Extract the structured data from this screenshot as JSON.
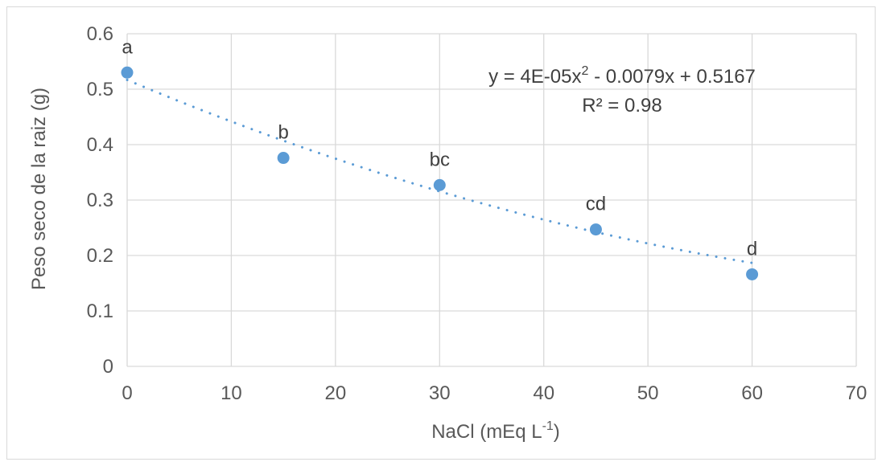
{
  "chart_data": {
    "type": "scatter",
    "x": [
      0,
      15,
      30,
      45,
      60
    ],
    "y": [
      0.53,
      0.376,
      0.327,
      0.247,
      0.166
    ],
    "point_labels": [
      "a",
      "b",
      "bc",
      "cd",
      "d"
    ],
    "xlabel_main": "NaCl (mEq L",
    "xlabel_sup": "-1",
    "xlabel_end": ")",
    "ylabel": "Peso seco de la raiz (g)",
    "xlim": [
      0,
      70
    ],
    "ylim": [
      0,
      0.6
    ],
    "xticks": [
      0,
      10,
      20,
      30,
      40,
      50,
      60,
      70
    ],
    "yticks": [
      0,
      0.1,
      0.2,
      0.3,
      0.4,
      0.5,
      0.6
    ],
    "ytick_labels": [
      "0",
      "0.1",
      "0.2",
      "0.3",
      "0.4",
      "0.5",
      "0.6"
    ],
    "grid": true,
    "trendline": {
      "type": "polynomial",
      "order": 2,
      "coefficients": [
        4e-05,
        -0.0079,
        0.5167
      ],
      "x_range": [
        0,
        60
      ],
      "style": "dotted"
    },
    "equation_main": "y = 4E-05x",
    "equation_sup": "2",
    "equation_rest": " - 0.0079x + 0.5167",
    "r_squared_label": "R² = 0.98",
    "colors": {
      "marker": "#5b9bd5",
      "trendline": "#5b9bd5",
      "grid": "#d9d9d9"
    }
  }
}
